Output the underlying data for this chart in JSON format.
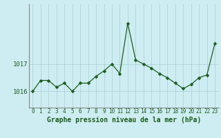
{
  "x": [
    0,
    1,
    2,
    3,
    4,
    5,
    6,
    7,
    8,
    9,
    10,
    11,
    12,
    13,
    14,
    15,
    16,
    17,
    18,
    19,
    20,
    21,
    22,
    23
  ],
  "y": [
    1016.0,
    1016.4,
    1016.4,
    1016.15,
    1016.3,
    1016.0,
    1016.3,
    1016.3,
    1016.55,
    1016.75,
    1017.0,
    1016.65,
    1018.5,
    1017.15,
    1017.0,
    1016.85,
    1016.65,
    1016.5,
    1016.3,
    1016.1,
    1016.25,
    1016.5,
    1016.6,
    1017.75
  ],
  "line_color": "#1a5c1a",
  "marker": "D",
  "marker_size": 2.5,
  "bg_color": "#ceedf2",
  "grid_color": "#a8cdd4",
  "xlabel": "Graphe pression niveau de la mer (hPa)",
  "xlabel_fontsize": 7,
  "yticks": [
    1016,
    1017
  ],
  "ylim": [
    1015.4,
    1019.2
  ],
  "xlim": [
    -0.5,
    23.5
  ],
  "xtick_labels": [
    "0",
    "1",
    "2",
    "3",
    "4",
    "5",
    "6",
    "7",
    "8",
    "9",
    "10",
    "11",
    "12",
    "13",
    "14",
    "15",
    "16",
    "17",
    "18",
    "19",
    "20",
    "21",
    "22",
    "23"
  ],
  "ytick_fontsize": 6.5,
  "xtick_fontsize": 5.5,
  "left_spine_color": "#888888"
}
